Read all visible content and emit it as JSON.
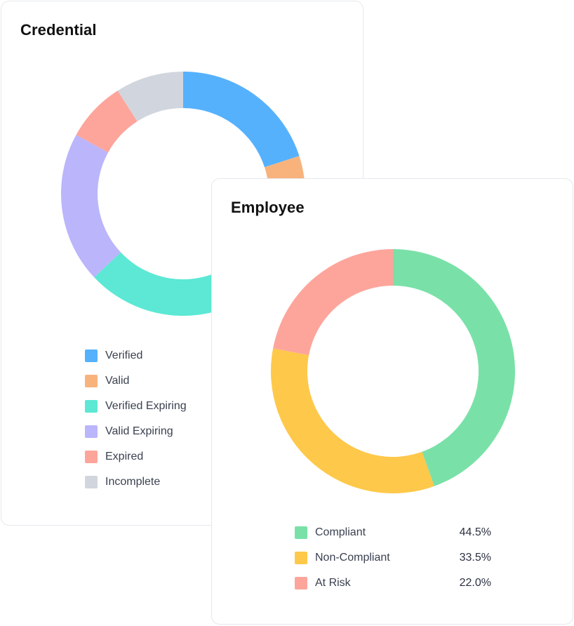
{
  "chart_data": [
    {
      "type": "pie",
      "title": "Credential",
      "donut": true,
      "categories": [
        "Verified",
        "Valid",
        "Verified Expiring",
        "Valid Expiring",
        "Expired",
        "Incomplete"
      ],
      "values": [
        20,
        13,
        30,
        20,
        8,
        9
      ],
      "colors": [
        "#56b1fd",
        "#f8b37d",
        "#5ce8d4",
        "#bbb5fb",
        "#fda59b",
        "#d1d6de"
      ],
      "legend": "bottom"
    },
    {
      "type": "pie",
      "title": "Employee",
      "donut": true,
      "categories": [
        "Compliant",
        "Non-Compliant",
        "At Risk"
      ],
      "values": [
        44.5,
        33.5,
        22.0
      ],
      "value_labels": [
        "44.5%",
        "33.5%",
        "22.0%"
      ],
      "colors": [
        "#79e1a8",
        "#fec84a",
        "#fda59b"
      ],
      "legend": "bottom"
    }
  ]
}
